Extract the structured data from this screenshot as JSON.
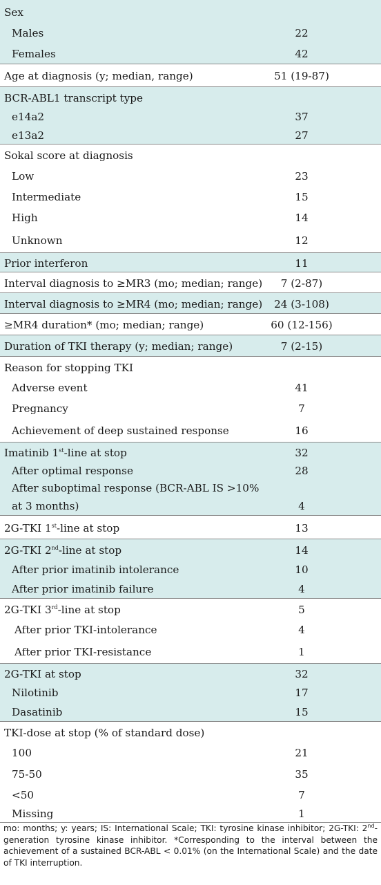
{
  "rows": [
    {
      "label": "Sex",
      "value": "",
      "indent": 0,
      "shade": true,
      "bt": false,
      "lines": [
        "Sex"
      ]
    },
    {
      "label": "Males",
      "value": "22",
      "indent": 1,
      "shade": true,
      "bt": false
    },
    {
      "label": "Females",
      "value": "42",
      "indent": 1,
      "shade": true,
      "bt": false
    },
    {
      "label": "Age at diagnosis (y; median, range)",
      "value": "51 (19-87)",
      "indent": 0,
      "shade": false,
      "bt": true
    },
    {
      "label": "BCR-ABL1 transcript type",
      "value": "",
      "indent": 0,
      "shade": true,
      "bt": true
    },
    {
      "label": "e14a2",
      "value": "37",
      "indent": 1,
      "shade": true,
      "bt": false
    },
    {
      "label": "e13a2",
      "value": "27",
      "indent": 1,
      "shade": true,
      "bt": false
    },
    {
      "label": "Sokal score at diagnosis",
      "value": "",
      "indent": 0,
      "shade": false,
      "bt": true
    },
    {
      "label": "Low",
      "value": "23",
      "indent": 1,
      "shade": false,
      "bt": false
    },
    {
      "label": "Intermediate",
      "value": "15",
      "indent": 1,
      "shade": false,
      "bt": false
    },
    {
      "label": "High",
      "value": "14",
      "indent": 1,
      "shade": false,
      "bt": false
    },
    {
      "label": "Unknown",
      "value": "12",
      "indent": 1,
      "shade": false,
      "bt": false
    },
    {
      "label": "Prior interferon",
      "value": "11",
      "indent": 0,
      "shade": true,
      "bt": true
    },
    {
      "label": "Interval diagnosis to ≥MR3 (mo; median; range)",
      "value": "7 (2-87)",
      "indent": 0,
      "shade": false,
      "bt": true
    },
    {
      "label": "Interval diagnosis to ≥MR4 (mo; median; range)",
      "value": "24 (3-108)",
      "indent": 0,
      "shade": true,
      "bt": true
    },
    {
      "label": "≥MR4 duration* (mo; median; range)",
      "value": "60 (12-156)",
      "indent": 0,
      "shade": false,
      "bt": true
    },
    {
      "label": "Duration of TKI therapy (y; median; range)",
      "value": "7 (2-15)",
      "indent": 0,
      "shade": true,
      "bt": true
    },
    {
      "label": "Reason for stopping TKI",
      "value": "",
      "indent": 0,
      "shade": false,
      "bt": true
    },
    {
      "label": "Adverse event",
      "value": "41",
      "indent": 1,
      "shade": false,
      "bt": false
    },
    {
      "label": "Pregnancy",
      "value": "7",
      "indent": 1,
      "shade": false,
      "bt": false
    },
    {
      "label": "Achievement of deep sustained response",
      "value": "16",
      "indent": 1,
      "shade": false,
      "bt": false
    },
    {
      "label_pre": "Imatinib 1",
      "label_sup": "st",
      "label_post": "-line at stop",
      "value": "32",
      "indent": 0,
      "shade": true,
      "bt": true
    },
    {
      "label": "After optimal response",
      "value": "28",
      "indent": 1,
      "shade": true,
      "bt": false
    },
    {
      "label": "After suboptimal response (BCR-ABL IS >10%",
      "value": "",
      "indent": 1,
      "shade": true,
      "bt": false
    },
    {
      "label": "at 3  months)",
      "value": "4",
      "indent": 1,
      "shade": true,
      "bt": false
    },
    {
      "label_pre": "2G-TKI 1",
      "label_sup": "st",
      "label_post": "-line at stop",
      "value": "13",
      "indent": 0,
      "shade": false,
      "bt": true
    },
    {
      "label_pre": "2G-TKI 2",
      "label_sup": "nd",
      "label_post": "-line at stop",
      "value": "14",
      "indent": 0,
      "shade": true,
      "bt": true
    },
    {
      "label": "After prior imatinib intolerance",
      "value": "10",
      "indent": 1,
      "shade": true,
      "bt": false
    },
    {
      "label": "After prior imatinib failure",
      "value": "4",
      "indent": 1,
      "shade": true,
      "bt": false
    },
    {
      "label_pre": "2G-TKI 3",
      "label_sup": "rd",
      "label_post": "-line at stop",
      "value": "5",
      "indent": 0,
      "shade": false,
      "bt": true
    },
    {
      "label": "After prior TKI-intolerance",
      "value": "4",
      "indent": 2,
      "shade": false,
      "bt": false
    },
    {
      "label": "After prior TKI-resistance",
      "value": "1",
      "indent": 2,
      "shade": false,
      "bt": false
    },
    {
      "label": "2G-TKI at stop",
      "value": "32",
      "indent": 0,
      "shade": true,
      "bt": true
    },
    {
      "label": "Nilotinib",
      "value": "17",
      "indent": 1,
      "shade": true,
      "bt": false
    },
    {
      "label": "Dasatinib",
      "value": "15",
      "indent": 1,
      "shade": true,
      "bt": false
    },
    {
      "label": "TKI-dose at stop (% of standard dose)",
      "value": "",
      "indent": 0,
      "shade": false,
      "bt": true
    },
    {
      "label": "100",
      "value": "21",
      "indent": 1,
      "shade": false,
      "bt": false
    },
    {
      "label": "75-50",
      "value": "35",
      "indent": 1,
      "shade": false,
      "bt": false
    },
    {
      "label": "<50",
      "value": "7",
      "indent": 1,
      "shade": false,
      "bt": false
    },
    {
      "label": "Missing",
      "value": "1",
      "indent": 1,
      "shade": false,
      "bt": false
    }
  ],
  "footnote": {
    "part1": "mo: months; y: years; IS: International Scale; TKI: tyrosine kinase inhibitor; 2G-TKI: 2",
    "sup": "nd",
    "part2": "-generation tyrosine kinase inhibitor. *Corresponding to the interval between the achievement of a sustained BCR-ABL < 0.01% (on the International Scale) and the date of TKI interruption."
  }
}
